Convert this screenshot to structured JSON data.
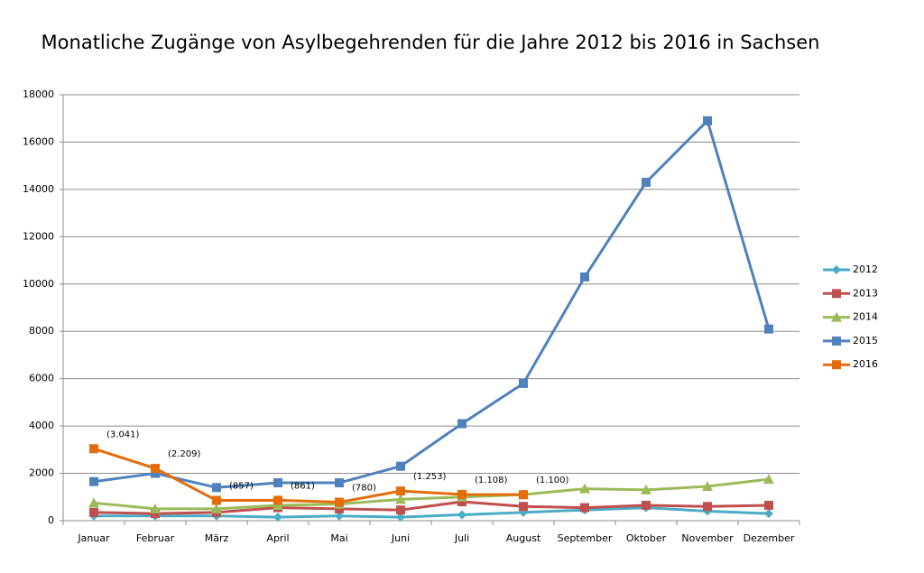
{
  "chart_data": {
    "type": "line",
    "title": "Monatliche Zugänge von Asylbegehrenden für die Jahre 2012 bis 2016 in Sachsen",
    "categories": [
      "Januar",
      "Februar",
      "März",
      "April",
      "Mai",
      "Juni",
      "Juli",
      "August",
      "September",
      "Oktober",
      "November",
      "Dezember"
    ],
    "ylim": [
      0,
      18000
    ],
    "yticks": [
      0,
      2000,
      4000,
      6000,
      8000,
      10000,
      12000,
      14000,
      16000,
      18000
    ],
    "grid": true,
    "legend": "right",
    "series": [
      {
        "name": "2012",
        "color": "#4bacc6",
        "marker": "diamond",
        "values": [
          200,
          200,
          200,
          150,
          200,
          150,
          250,
          350,
          450,
          550,
          400,
          300
        ]
      },
      {
        "name": "2013",
        "color": "#c0504d",
        "marker": "square",
        "values": [
          350,
          300,
          350,
          550,
          500,
          450,
          800,
          600,
          550,
          650,
          600,
          650
        ]
      },
      {
        "name": "2014",
        "color": "#9bbb59",
        "marker": "triangle",
        "values": [
          750,
          500,
          500,
          650,
          700,
          900,
          1000,
          1100,
          1350,
          1300,
          1450,
          1750
        ]
      },
      {
        "name": "2015",
        "color": "#4f81bd",
        "marker": "square",
        "values": [
          1650,
          2000,
          1400,
          1600,
          1600,
          2300,
          4100,
          5800,
          10300,
          14300,
          16900,
          8100
        ]
      },
      {
        "name": "2016",
        "color": "#e46c0a",
        "marker": "square",
        "values": [
          3041,
          2209,
          857,
          861,
          780,
          1253,
          1108,
          1100,
          null,
          null,
          null,
          null
        ],
        "value_labels": [
          "(3.041)",
          "(2.209)",
          "(857)",
          "(861)",
          "(780)",
          "(1.253)",
          "(1.108)",
          "(1.100)",
          null,
          null,
          null,
          null
        ]
      }
    ]
  }
}
